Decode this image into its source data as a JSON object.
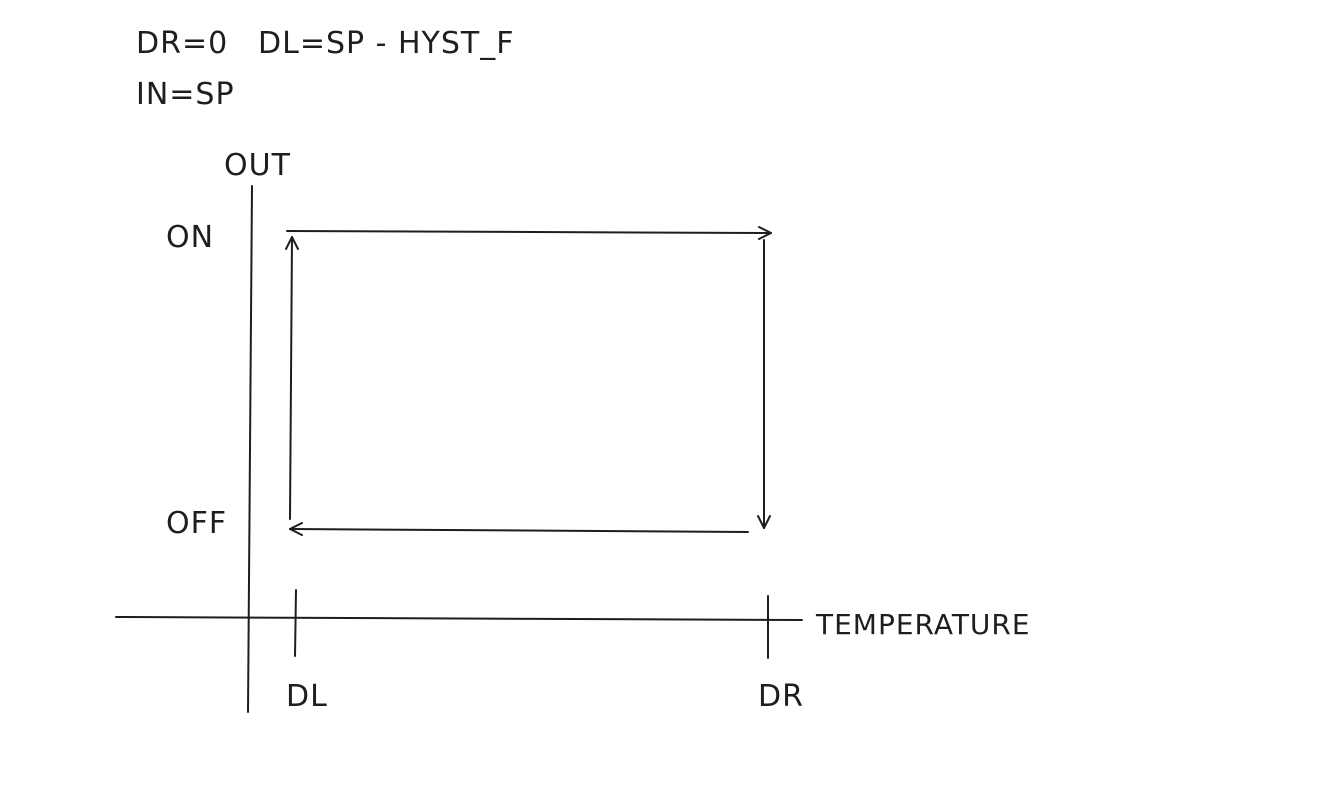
{
  "equations": {
    "line1_left": "DR=0",
    "line1_right": "DL=SP - HYST_F",
    "line2": "IN=SP"
  },
  "axes": {
    "y_label": "OUT",
    "x_label": "TEMPERATURE"
  },
  "levels": {
    "on": "ON",
    "off": "OFF"
  },
  "ticks": {
    "left": "DL",
    "right": "DR"
  },
  "colors": {
    "ink": "#1e1e1e",
    "background": "#ffffff"
  }
}
